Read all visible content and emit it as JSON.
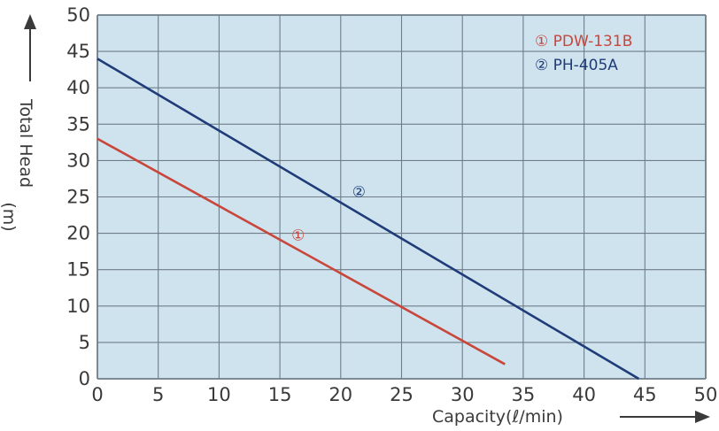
{
  "chart_data": {
    "type": "line",
    "xlabel": "Capacity(ℓ/min)",
    "ylabel": "Total Head",
    "ylabel_unit": "(m)",
    "xlim": [
      0,
      50
    ],
    "ylim": [
      0,
      50
    ],
    "x_ticks": [
      0,
      5,
      10,
      15,
      20,
      25,
      30,
      35,
      40,
      45,
      50
    ],
    "y_ticks": [
      0,
      5,
      10,
      15,
      20,
      25,
      30,
      35,
      40,
      45,
      50
    ],
    "grid": true,
    "legend_position": "top-right",
    "series": [
      {
        "name": "PDW-131B",
        "marker": "①",
        "color": "#c8463a",
        "points": [
          [
            0,
            33
          ],
          [
            33.5,
            2
          ]
        ],
        "marker_at": [
          16.5,
          20
        ]
      },
      {
        "name": "PH-405A",
        "marker": "②",
        "color": "#1f3c78",
        "points": [
          [
            0,
            44
          ],
          [
            44.5,
            0
          ]
        ],
        "marker_at": [
          21.5,
          26
        ]
      }
    ],
    "colors": {
      "plot_background": "#cfe3ef",
      "grid": "#6e7d88",
      "text": "#3a3a3a"
    }
  }
}
